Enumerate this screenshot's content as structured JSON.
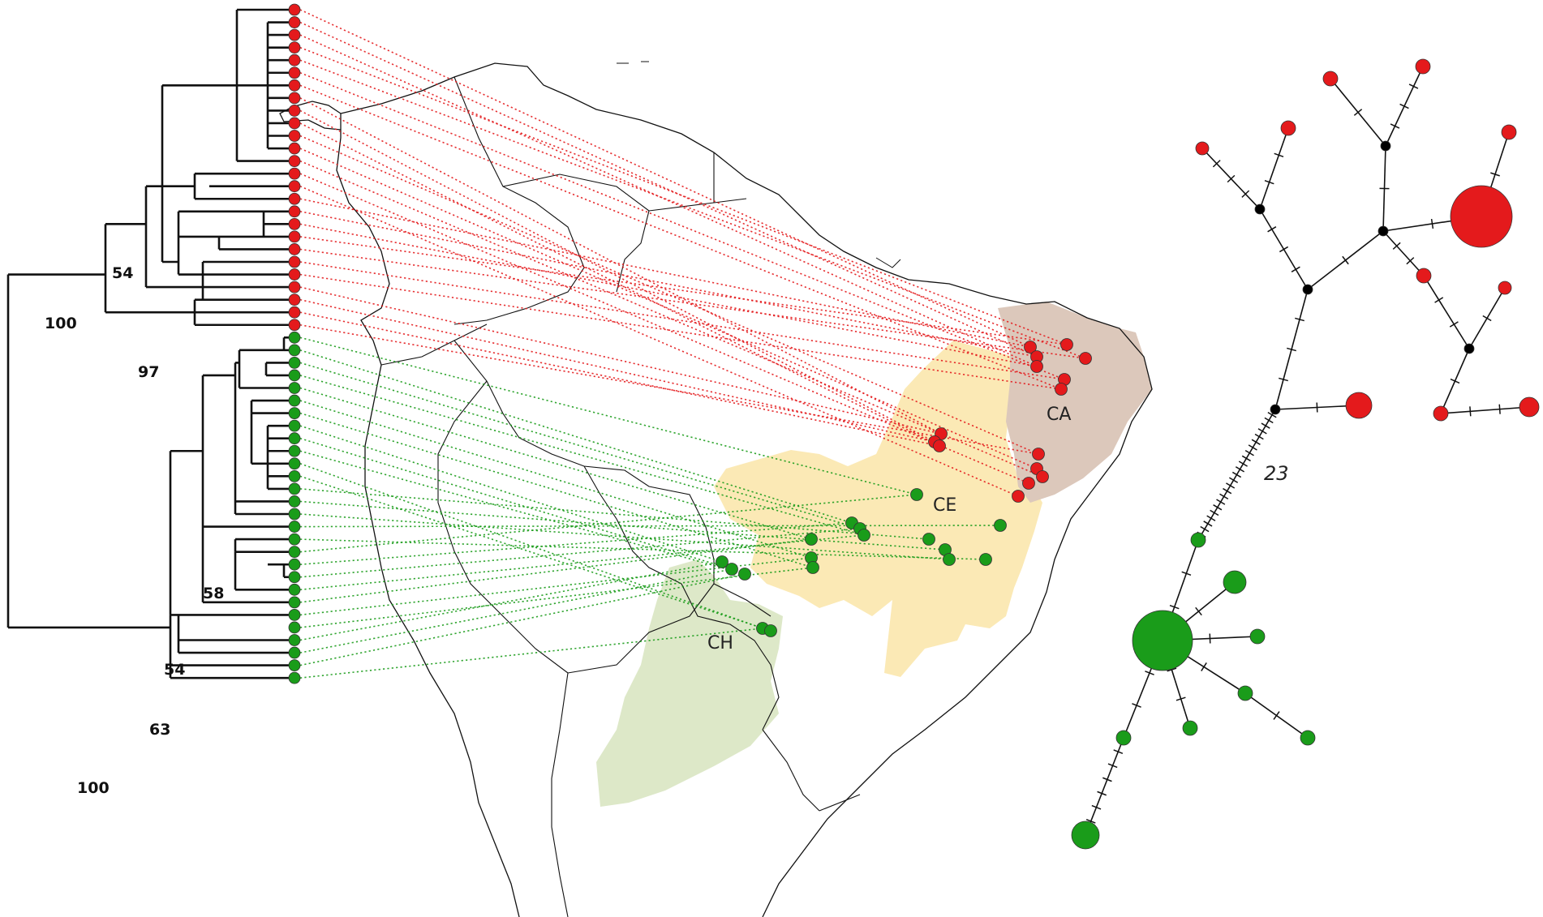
{
  "colors": {
    "clade_red": "#e41a1c",
    "clade_green": "#1a9c1a",
    "tree_line": "#111111",
    "region_CA": "#dcc8bb",
    "region_CE": "#fbe9b5",
    "region_CH": "#dde8c8",
    "map_outline": "#111111",
    "network_node": "#000000"
  },
  "tree": {
    "bootstrap_labels": [
      "100",
      "54",
      "97",
      "58",
      "54",
      "63",
      "100"
    ],
    "red_tip_count": 26,
    "green_tip_count": 28
  },
  "map": {
    "region_labels": {
      "ca": "CA",
      "ce": "CE",
      "ch": "CH"
    }
  },
  "network": {
    "step_label": "23"
  }
}
